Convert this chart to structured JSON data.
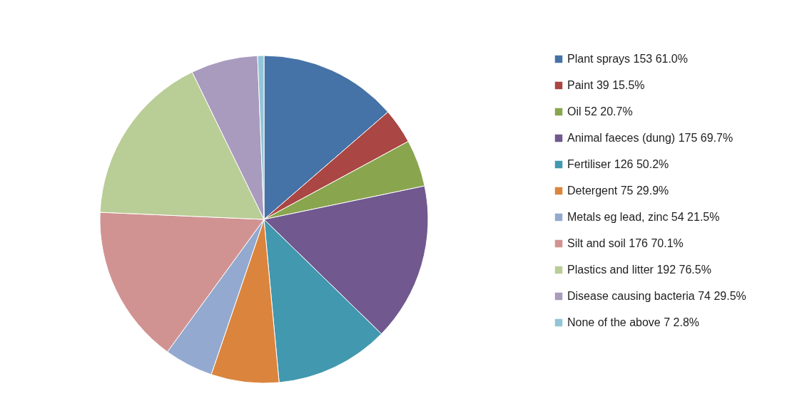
{
  "chart_data": {
    "type": "pie",
    "categories": [
      "Plant sprays 153 61.0%",
      "Paint 39 15.5%",
      "Oil 52 20.7%",
      "Animal faeces (dung) 175 69.7%",
      "Fertiliser 126 50.2%",
      "Detergent 75 29.9%",
      "Metals eg lead, zinc 54 21.5%",
      "Silt and soil 176 70.1%",
      "Plastics and litter 192 76.5%",
      "Disease causing bacteria 74 29.5%",
      "None of the above 7 2.8%"
    ],
    "values": [
      153,
      39,
      52,
      175,
      126,
      75,
      54,
      176,
      192,
      74,
      7
    ],
    "colors": [
      "#4572a7",
      "#aa4643",
      "#89a54e",
      "#71588f",
      "#4198af",
      "#db843d",
      "#93a9cf",
      "#d19392",
      "#b9cd96",
      "#a99bbd",
      "#92c5d7"
    ],
    "legend": "right"
  }
}
